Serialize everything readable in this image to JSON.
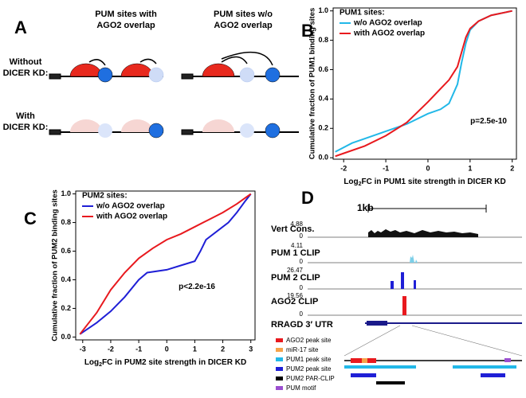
{
  "panels": {
    "A": {
      "label": "A",
      "columns": [
        [
          "PUM sites with",
          "AGO2 overlap"
        ],
        [
          "PUM sites w/o",
          "AGO2 overlap"
        ]
      ],
      "rows": [
        [
          "Without",
          "DICER KD:"
        ],
        [
          "With",
          "DICER KD:"
        ]
      ]
    },
    "B": {
      "label": "B"
    },
    "C": {
      "label": "C"
    },
    "D": {
      "label": "D",
      "scale": "1kb",
      "tracks": [
        {
          "name": "Vert Cons.",
          "max": "4.88",
          "min": "0"
        },
        {
          "name": "PUM 1 CLIP",
          "max": "4.11",
          "min": "0"
        },
        {
          "name": "PUM 2 CLIP",
          "max": "26.47",
          "min": "0"
        },
        {
          "name": "AGO2 CLIP",
          "max": "19.56",
          "min": "0"
        }
      ],
      "gene": "RRAGD 3′ UTR",
      "legend": [
        "AGO2 peak site",
        "miR-17 site",
        "PUM1 peak site",
        "PUM2 peak site",
        "PUM2 PAR-CLIP",
        "PUM motif"
      ]
    }
  },
  "chart_data": [
    {
      "type": "line",
      "ylabel": "Cumulative fraction of PUM1 binding sites",
      "xlabel": {
        "base": "Log",
        "sub": "2",
        "rest": "FC in PUM1 site strength in DICER KD"
      },
      "legend_title": "PUM1 sites:",
      "legend": "upper left",
      "annotation": "p=2.5e-10",
      "xlim": [
        -2.25,
        2.1
      ],
      "ylim": [
        -0.01,
        1.02
      ],
      "xticks": [
        -2,
        -1,
        0,
        1,
        2
      ],
      "yticks": [
        {
          "value": 0,
          "label": "0.0"
        },
        {
          "value": 0.2,
          "label": "0.2"
        },
        {
          "value": 0.4,
          "label": "0.4"
        },
        {
          "value": 0.6,
          "label": "0.6"
        },
        {
          "value": 0.8,
          "label": "0.8"
        },
        {
          "value": 1,
          "label": "1.0"
        }
      ],
      "series": [
        {
          "name": "w/o AGO2 overlap",
          "color": "#22b8e8",
          "x": [
            -2.2,
            -1.8,
            -1.5,
            -1,
            -0.5,
            0,
            0.3,
            0.5,
            0.7,
            0.8,
            0.9,
            1,
            1.2,
            1.5,
            2
          ],
          "values": [
            0.04,
            0.1,
            0.13,
            0.18,
            0.23,
            0.3,
            0.33,
            0.37,
            0.5,
            0.65,
            0.78,
            0.87,
            0.93,
            0.97,
            1
          ]
        },
        {
          "name": "with AGO2 overlap",
          "color": "#e8191e",
          "x": [
            -2.2,
            -2,
            -1.5,
            -1,
            -0.5,
            0,
            0.3,
            0.5,
            0.7,
            0.8,
            0.9,
            1,
            1.2,
            1.5,
            2
          ],
          "values": [
            0.01,
            0.03,
            0.08,
            0.15,
            0.24,
            0.38,
            0.47,
            0.53,
            0.62,
            0.72,
            0.82,
            0.88,
            0.93,
            0.97,
            1
          ]
        }
      ]
    },
    {
      "type": "line",
      "ylabel": "Cumulative fraction of PUM2 binding sites",
      "xlabel": {
        "base": "Log",
        "sub": "2",
        "rest": "FC in PUM2 site strength in DICER KD"
      },
      "legend_title": "PUM2 sites:",
      "legend": "upper left",
      "annotation": "p<2.2e-16",
      "xlim": [
        -3.25,
        3.15
      ],
      "ylim": [
        -0.02,
        1.02
      ],
      "xticks": [
        -3,
        -2,
        -1,
        0,
        1,
        2,
        3
      ],
      "yticks": [
        {
          "value": 0,
          "label": "0.0"
        },
        {
          "value": 0.2,
          "label": "0.2"
        },
        {
          "value": 0.4,
          "label": "0.4"
        },
        {
          "value": 0.6,
          "label": "0.6"
        },
        {
          "value": 0.8,
          "label": "0.8"
        },
        {
          "value": 1,
          "label": "1.0"
        }
      ],
      "series": [
        {
          "name": "w/o AGO2 overlap",
          "color": "#1f1fd6",
          "x": [
            -3.1,
            -2.5,
            -2,
            -1.5,
            -1,
            -0.7,
            0,
            0.5,
            1,
            1.2,
            1.4,
            1.8,
            2.2,
            2.5,
            2.8,
            3
          ],
          "values": [
            0.02,
            0.1,
            0.18,
            0.28,
            0.4,
            0.45,
            0.47,
            0.5,
            0.53,
            0.6,
            0.68,
            0.74,
            0.8,
            0.87,
            0.95,
            1
          ]
        },
        {
          "name": "with AGO2 overlap",
          "color": "#e8191e",
          "x": [
            -3.1,
            -2.5,
            -2,
            -1.5,
            -1,
            -0.5,
            0,
            0.5,
            1,
            1.5,
            2,
            2.5,
            3
          ],
          "values": [
            0.02,
            0.17,
            0.33,
            0.45,
            0.55,
            0.62,
            0.68,
            0.72,
            0.77,
            0.82,
            0.87,
            0.93,
            1
          ]
        }
      ]
    }
  ]
}
